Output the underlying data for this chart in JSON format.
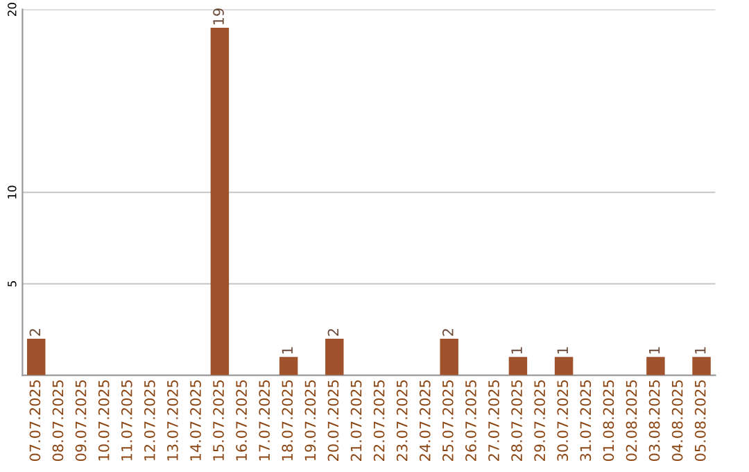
{
  "chart_data": {
    "type": "bar",
    "categories": [
      "07.07.2025",
      "08.07.2025",
      "09.07.2025",
      "10.07.2025",
      "11.07.2025",
      "12.07.2025",
      "13.07.2025",
      "14.07.2025",
      "15.07.2025",
      "16.07.2025",
      "17.07.2025",
      "18.07.2025",
      "19.07.2025",
      "20.07.2025",
      "21.07.2025",
      "22.07.2025",
      "23.07.2025",
      "24.07.2025",
      "25.07.2025",
      "26.07.2025",
      "27.07.2025",
      "28.07.2025",
      "29.07.2025",
      "30.07.2025",
      "31.07.2025",
      "01.08.2025",
      "02.08.2025",
      "03.08.2025",
      "04.08.2025",
      "05.08.2025"
    ],
    "values": [
      2,
      0,
      0,
      0,
      0,
      0,
      0,
      0,
      19,
      0,
      0,
      1,
      0,
      2,
      0,
      0,
      0,
      0,
      2,
      0,
      0,
      1,
      0,
      1,
      0,
      0,
      0,
      1,
      0,
      1
    ],
    "value_labels": [
      "2",
      null,
      null,
      null,
      null,
      null,
      null,
      null,
      "19",
      null,
      null,
      "1",
      null,
      "2",
      null,
      null,
      null,
      null,
      "2",
      null,
      null,
      "1",
      null,
      "1",
      null,
      null,
      null,
      "1",
      null,
      "1"
    ],
    "color": "#a0522d",
    "ylim": [
      0,
      20
    ],
    "yticks": [
      5,
      10,
      20
    ],
    "grid": "y"
  }
}
